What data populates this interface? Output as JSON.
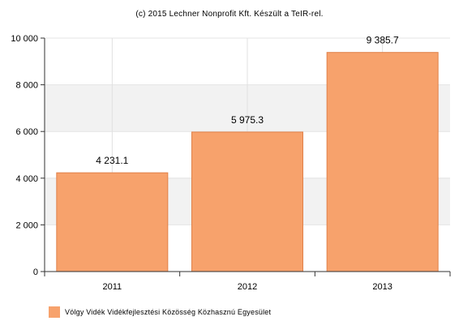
{
  "chart_data": {
    "type": "bar",
    "title": "(c) 2015 Lechner Nonprofit Kft. Készült a TeIR-rel.",
    "categories": [
      "2011",
      "2012",
      "2013"
    ],
    "series": [
      {
        "name": "Völgy Vidék Vidékfejlesztési Közösség Közhasznú Egyesület",
        "values": [
          4231.1,
          5975.3,
          9385.7
        ],
        "value_labels": [
          "4 231.1",
          "5 975.3",
          "9 385.7"
        ],
        "color": "#f7a26c"
      }
    ],
    "yticks": [
      0,
      2000,
      4000,
      6000,
      8000,
      10000
    ],
    "ytick_labels": [
      "0",
      "2 000",
      "4 000",
      "6 000",
      "8 000",
      "10 000"
    ],
    "ylim": [
      0,
      10000
    ],
    "xlabel": "",
    "ylabel": "",
    "grid": true,
    "legend_position": "bottom-left"
  }
}
